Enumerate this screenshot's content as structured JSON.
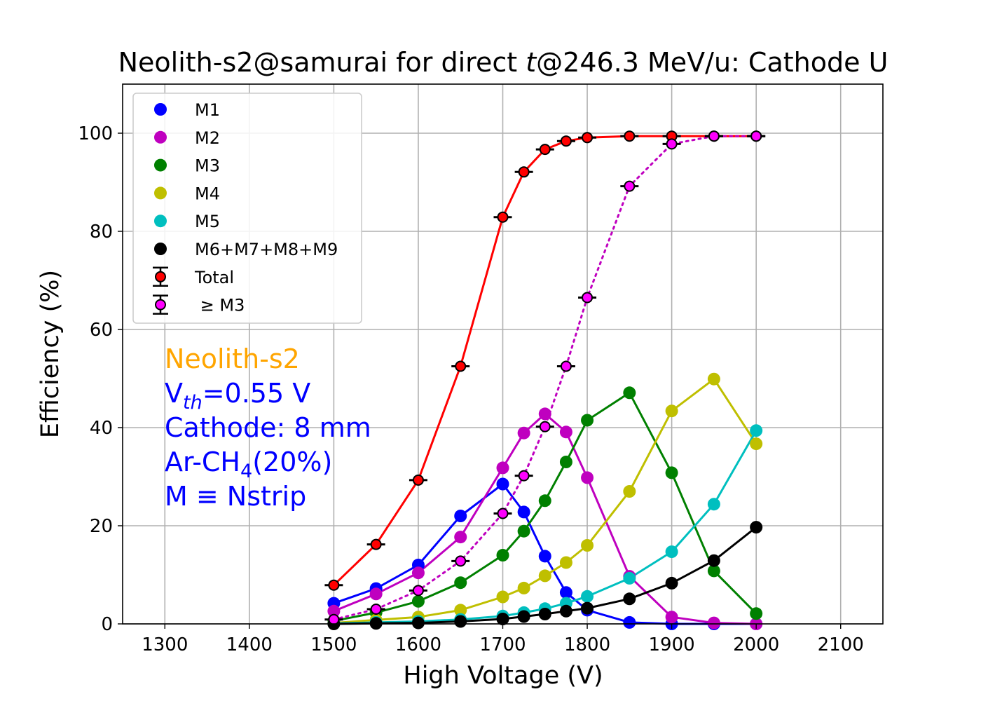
{
  "chart_data": {
    "type": "line",
    "title_main": "Neolith-s2@samurai for direct ",
    "title_italic": "t",
    "title_rest": "@246.3 MeV/u: Cathode U",
    "xlabel": "High Voltage (V)",
    "ylabel": "Efficiency (%)",
    "xlim": [
      1250,
      2150
    ],
    "ylim": [
      0,
      110
    ],
    "xticks": [
      "1300",
      "1400",
      "1500",
      "1600",
      "1700",
      "1800",
      "1900",
      "2000",
      "2100"
    ],
    "yticks": [
      "0",
      "20",
      "40",
      "60",
      "80",
      "100"
    ],
    "grid": true,
    "legend_position": "upper-left",
    "series": [
      {
        "name": "M1",
        "color": "#0000ff",
        "style": "solid-marker",
        "x": [
          1500,
          1550,
          1600,
          1650,
          1700,
          1725,
          1750,
          1775,
          1800,
          1850,
          1900,
          1950,
          2000
        ],
        "y": [
          4.2,
          7.2,
          12.0,
          22.0,
          28.5,
          22.8,
          13.8,
          6.4,
          2.8,
          0.3,
          0.0,
          0.0,
          0.0
        ]
      },
      {
        "name": "M2",
        "color": "#bf00bf",
        "style": "solid-marker",
        "x": [
          1500,
          1550,
          1600,
          1650,
          1700,
          1725,
          1750,
          1775,
          1800,
          1850,
          1900,
          1950,
          2000
        ],
        "y": [
          2.6,
          6.1,
          10.4,
          17.7,
          31.8,
          38.9,
          42.8,
          39.1,
          29.8,
          9.7,
          1.4,
          0.2,
          0.0
        ]
      },
      {
        "name": "M3",
        "color": "#008000",
        "style": "solid-marker",
        "x": [
          1500,
          1550,
          1600,
          1650,
          1700,
          1725,
          1750,
          1775,
          1800,
          1850,
          1900,
          1950,
          2000
        ],
        "y": [
          0.6,
          2.3,
          4.6,
          8.4,
          14.0,
          18.9,
          25.1,
          33.0,
          41.5,
          47.1,
          30.8,
          10.8,
          2.1
        ]
      },
      {
        "name": "M4",
        "color": "#bfbf00",
        "style": "solid-marker",
        "x": [
          1500,
          1550,
          1600,
          1650,
          1700,
          1725,
          1750,
          1775,
          1800,
          1850,
          1900,
          1950,
          2000
        ],
        "y": [
          0.2,
          0.8,
          1.4,
          2.8,
          5.5,
          7.3,
          9.8,
          12.5,
          16.0,
          27.0,
          43.4,
          49.9,
          36.7
        ]
      },
      {
        "name": "M5",
        "color": "#00bfbf",
        "style": "solid-marker",
        "x": [
          1500,
          1550,
          1600,
          1650,
          1700,
          1725,
          1750,
          1775,
          1800,
          1850,
          1900,
          1950,
          2000
        ],
        "y": [
          0.1,
          0.3,
          0.5,
          0.9,
          1.6,
          2.3,
          3.1,
          4.2,
          5.6,
          9.3,
          14.7,
          24.4,
          39.4
        ]
      },
      {
        "name": "M6+M7+M8+M9",
        "color": "#000000",
        "style": "solid-marker",
        "x": [
          1500,
          1550,
          1600,
          1650,
          1700,
          1725,
          1750,
          1775,
          1800,
          1850,
          1900,
          1950,
          2000
        ],
        "y": [
          0.0,
          0.1,
          0.2,
          0.5,
          1.0,
          1.5,
          2.0,
          2.6,
          3.2,
          5.1,
          8.3,
          12.9,
          19.7
        ]
      },
      {
        "name": "Total",
        "color": "#ff0000",
        "style": "solid-errorbar",
        "x": [
          1500,
          1550,
          1600,
          1650,
          1700,
          1725,
          1750,
          1775,
          1800,
          1850,
          1900,
          1950,
          2000
        ],
        "y": [
          7.9,
          16.2,
          29.3,
          52.5,
          82.9,
          92.1,
          96.7,
          98.4,
          99.1,
          99.4,
          99.4,
          99.4,
          99.4
        ]
      },
      {
        "name": " ≥ M3",
        "color": "#ff00ff",
        "line_color": "#bf00bf",
        "style": "dotted-errorbar",
        "x": [
          1500,
          1550,
          1600,
          1650,
          1700,
          1725,
          1750,
          1775,
          1800,
          1850,
          1900,
          1950,
          2000
        ],
        "y": [
          0.9,
          3.0,
          6.8,
          12.8,
          22.5,
          30.2,
          40.2,
          52.5,
          66.5,
          89.2,
          97.8,
          99.4,
          99.4
        ]
      }
    ],
    "annotations": [
      {
        "segments": [
          {
            "t": "Neolith-s2"
          }
        ],
        "color": "#ffa500"
      },
      {
        "segments": [
          {
            "t": "V"
          },
          {
            "t": "th",
            "sub": true,
            "italic": true
          },
          {
            "t": "=0.55 V"
          }
        ],
        "color": "#0000ff"
      },
      {
        "segments": [
          {
            "t": "Cathode: 8 mm"
          }
        ],
        "color": "#0000ff"
      },
      {
        "segments": [
          {
            "t": "Ar-CH"
          },
          {
            "t": "4",
            "sub": true
          },
          {
            "t": "(20%)"
          }
        ],
        "color": "#0000ff"
      },
      {
        "segments": [
          {
            "t": "M ≡ Nstrip"
          }
        ],
        "color": "#0000ff"
      }
    ]
  }
}
